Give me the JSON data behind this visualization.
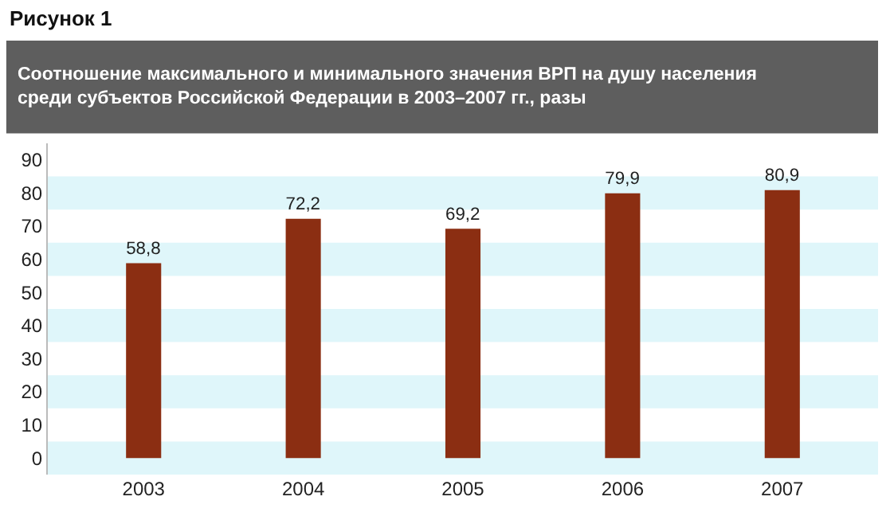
{
  "chart_data": {
    "type": "bar",
    "title": "Рисунок 1",
    "subtitle": "Соотношение максимального и минимального значения ВРП на душу населения\nсреди субъектов Российской Федерации в 2003–2007 гг., разы",
    "categories": [
      "2003",
      "2004",
      "2005",
      "2006",
      "2007"
    ],
    "values": [
      58.8,
      72.2,
      69.2,
      79.9,
      80.9
    ],
    "color": "#8b2e12",
    "value_labels": [
      "58,8",
      "72,2",
      "69,2",
      "79,9",
      "80,9"
    ],
    "ylim": [
      -5,
      95
    ],
    "yticks": [
      0,
      10,
      20,
      30,
      40,
      50,
      60,
      70,
      80,
      90
    ],
    "grid": false,
    "bands": [
      {
        "axis": "y",
        "from": -5,
        "to": 5,
        "color": "#dff6fa"
      },
      {
        "axis": "y",
        "from": 15,
        "to": 25,
        "color": "#dff6fa"
      },
      {
        "axis": "y",
        "from": 35,
        "to": 45,
        "color": "#dff6fa"
      },
      {
        "axis": "y",
        "from": 55,
        "to": 65,
        "color": "#dff6fa"
      },
      {
        "axis": "y",
        "from": 75,
        "to": 85,
        "color": "#dff6fa"
      }
    ]
  }
}
